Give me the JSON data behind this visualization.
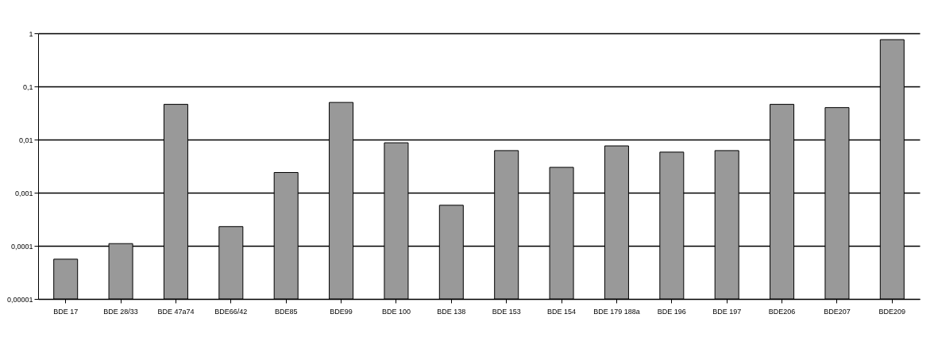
{
  "chart_data": {
    "type": "bar",
    "categories": [
      "BDE 17",
      "BDE 28/33",
      "BDE 47a74",
      "BDE66/42",
      "BDE85",
      "BDE99",
      "BDE 100",
      "BDE 138",
      "BDE 153",
      "BDE 154",
      "BDE 179 188a",
      "BDE 196",
      "BDE 197",
      "BDE206",
      "BDE207",
      "BDE209"
    ],
    "values": [
      5.6e-05,
      0.00011,
      0.046,
      0.00023,
      0.0024,
      0.05,
      0.0087,
      0.00058,
      0.0062,
      0.003,
      0.0076,
      0.0058,
      0.0062,
      0.046,
      0.04,
      0.76
    ],
    "color": "#999999",
    "log": true,
    "ylim": [
      1e-05,
      1
    ],
    "yticks": [
      {
        "value": 1e-05,
        "label": "0,00001"
      },
      {
        "value": 0.0001,
        "label": "0,0001"
      },
      {
        "value": 0.001,
        "label": "0,001"
      },
      {
        "value": 0.01,
        "label": "0,01"
      },
      {
        "value": 0.1,
        "label": "0,1"
      },
      1
    ],
    "grid": "y"
  }
}
